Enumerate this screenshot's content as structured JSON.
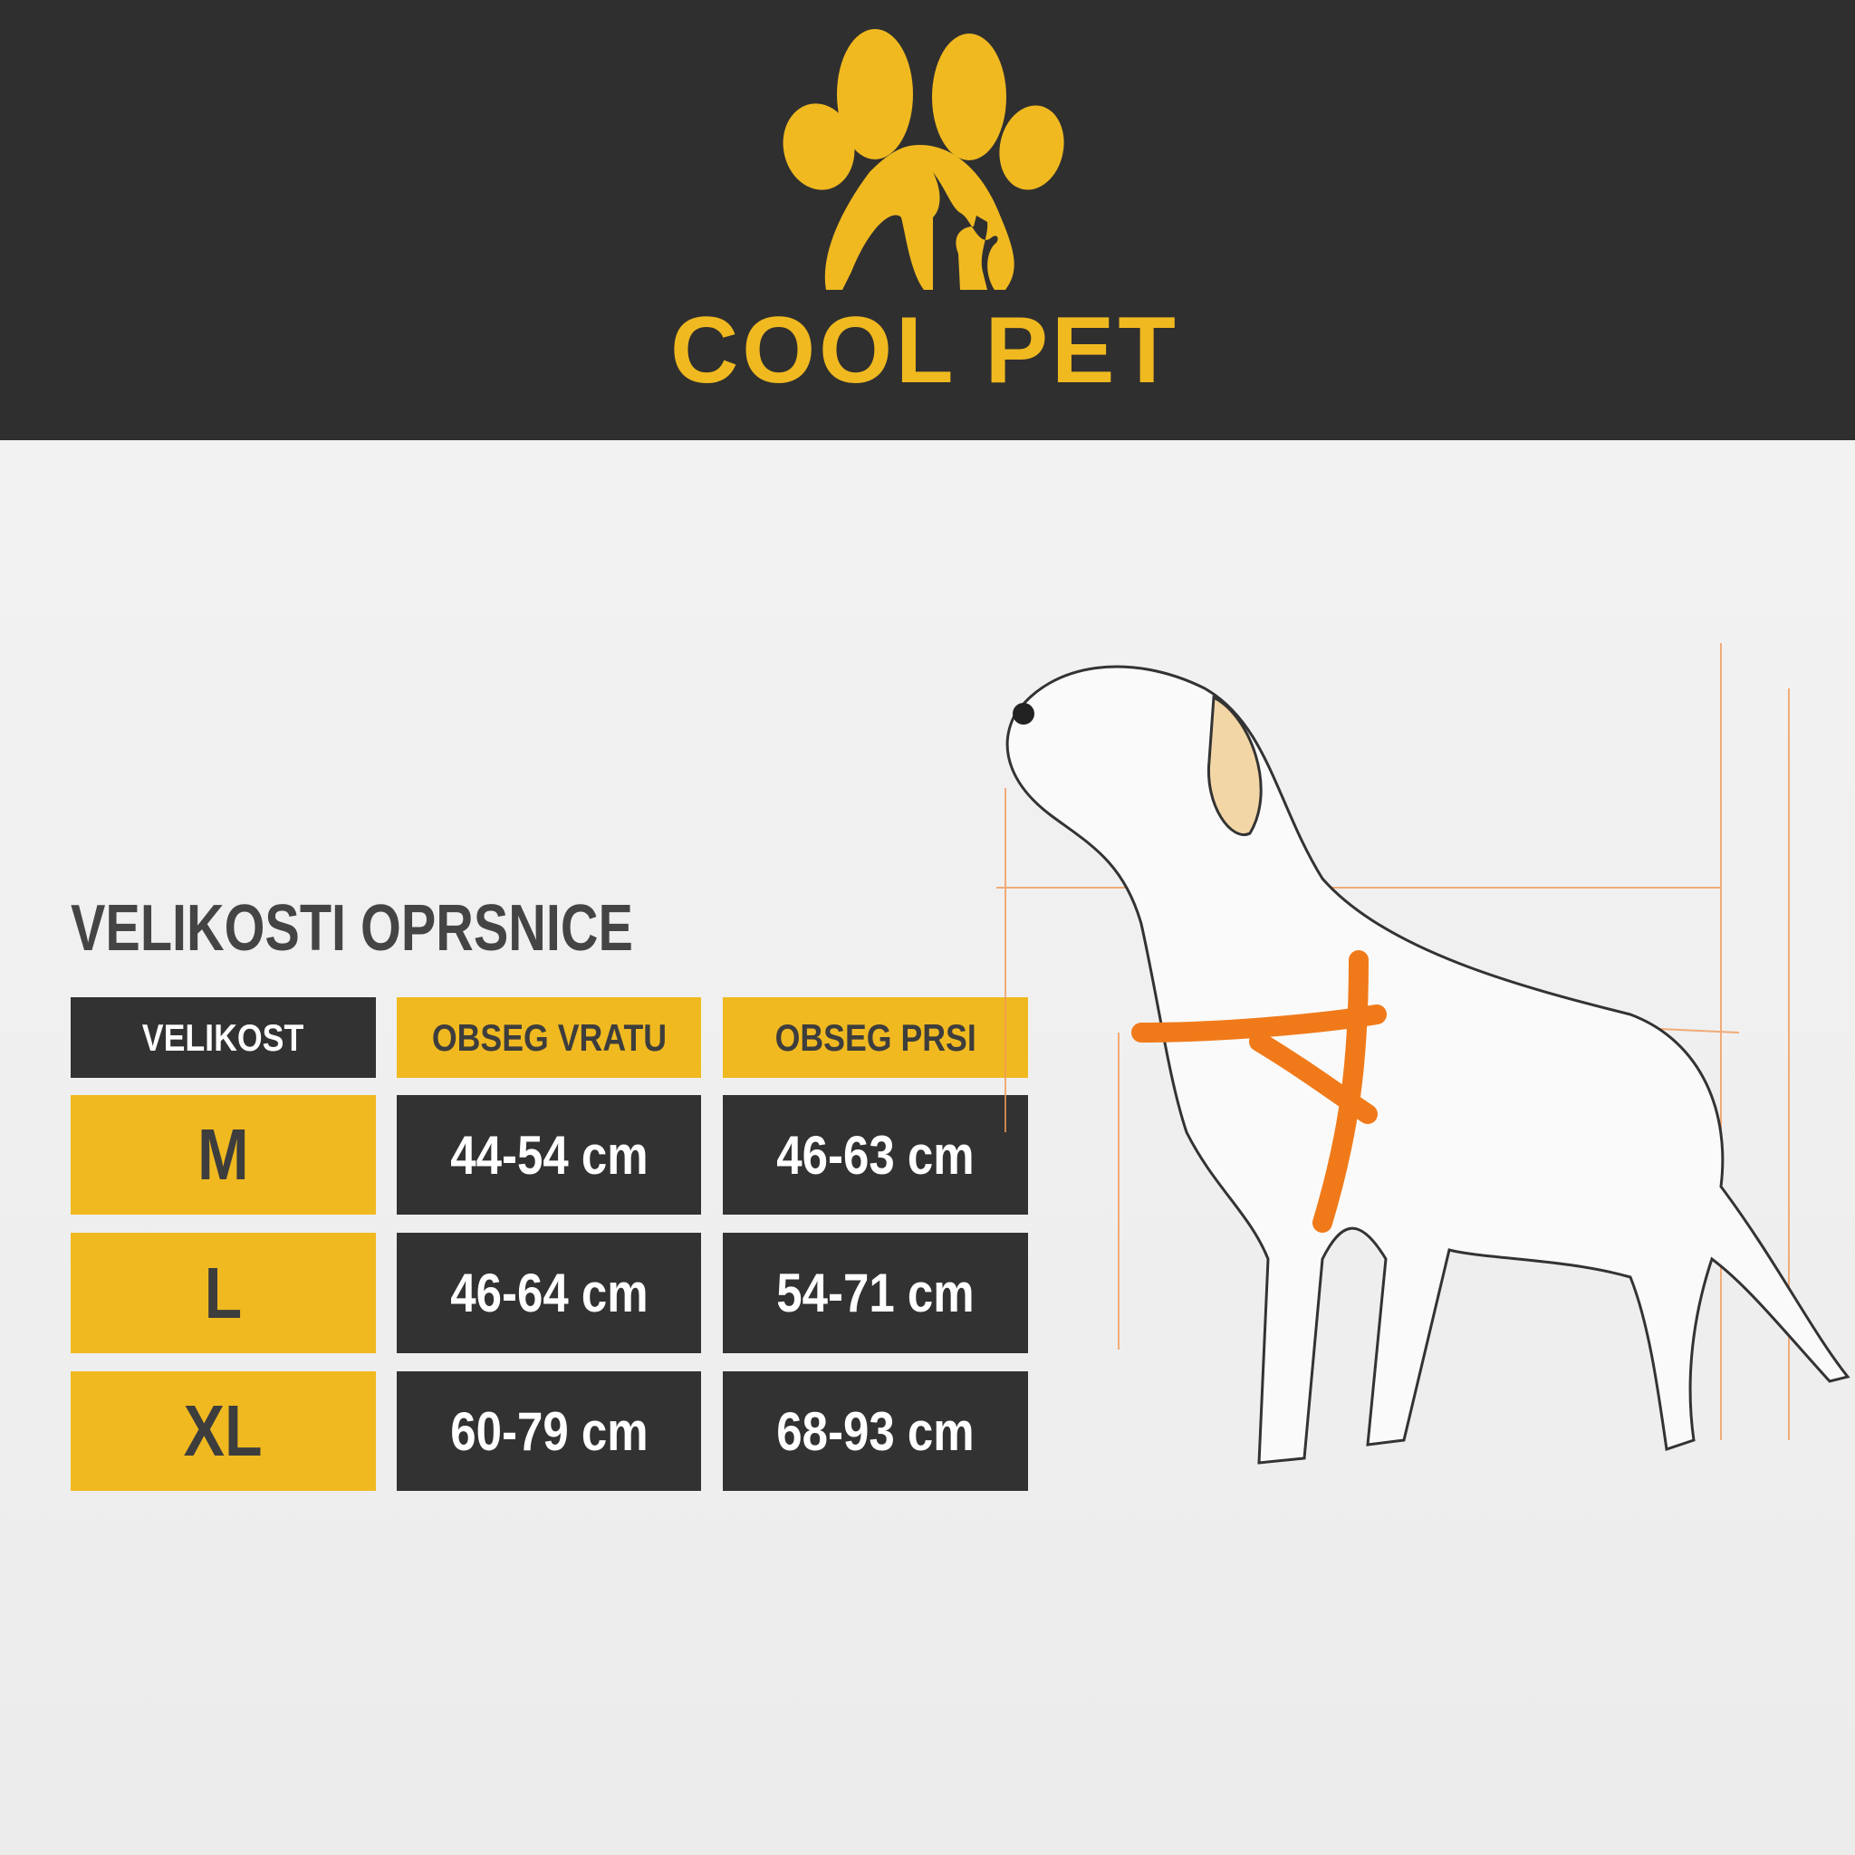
{
  "brand": {
    "name": "COOL PET",
    "logo_icon": "paw-with-dog-and-cat-icon",
    "color": "#f0b920"
  },
  "title": "VELIKOSTI OPRSNICE",
  "table": {
    "headers": [
      "VELIKOST",
      "OBSEG VRATU",
      "OBSEG PRSI"
    ],
    "rows": [
      {
        "size": "M",
        "neck": "44-54 cm",
        "chest": "46-63 cm"
      },
      {
        "size": "L",
        "neck": "46-64 cm",
        "chest": "54-71 cm"
      },
      {
        "size": "XL",
        "neck": "60-79 cm",
        "chest": "68-93 cm"
      }
    ]
  },
  "colors": {
    "yellow": "#f0b920",
    "dark": "#323232",
    "harness": "#f07a1a"
  }
}
